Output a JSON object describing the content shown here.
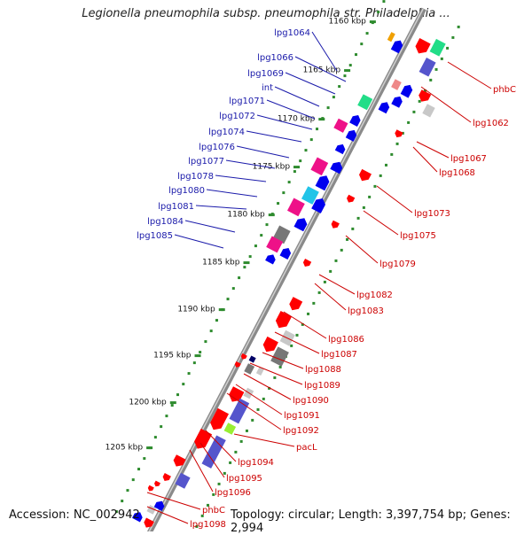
{
  "title": "Legionella pneumophila subsp. pneumophila str. Philadelphia ...",
  "footer": {
    "accession": "Accession: NC_002942",
    "summary": "Topology: circular; Length: 3,397,754 bp; Genes: 2,994"
  },
  "colors": {
    "backbone": "#8a8a8a",
    "dots": "#2e8b2e",
    "label_top": "#1a1aaa",
    "label_bottom": "#cc0000",
    "red": "#ff0000",
    "blue": "#0000ee",
    "magenta": "#ee1188",
    "gray": "#777777",
    "lightgray": "#c8c8c8",
    "cyan": "#22c4e8",
    "green": "#22dd88",
    "lime": "#99ee33",
    "purple": "#5555cc",
    "orange": "#f0a000",
    "pink": "#ee8888",
    "navy": "#000066"
  },
  "ticks": [
    "1160 kbp",
    "1165 kbp",
    "1170 kbp",
    "1175 kbp",
    "1180 kbp",
    "1185 kbp",
    "1190 kbp",
    "1195 kbp",
    "1200 kbp",
    "1205 kbp"
  ],
  "top_labels": [
    "lpg1064",
    "lpg1066",
    "lpg1069",
    "int",
    "lpg1071",
    "lpg1072",
    "lpg1074",
    "lpg1076",
    "lpg1077",
    "lpg1078",
    "lpg1080",
    "lpg1081",
    "lpg1084",
    "lpg1085"
  ],
  "bottom_labels": [
    "phbC",
    "lpg1062",
    "lpg1067",
    "lpg1068",
    "lpg1073",
    "lpg1075",
    "lpg1079",
    "lpg1082",
    "lpg1083",
    "lpg1086",
    "lpg1087",
    "lpg1088",
    "lpg1089",
    "lpg1090",
    "lpg1091",
    "lpg1092",
    "pacL",
    "lpg1094",
    "lpg1095",
    "lpg1096",
    "phbC",
    "lpg1098"
  ]
}
